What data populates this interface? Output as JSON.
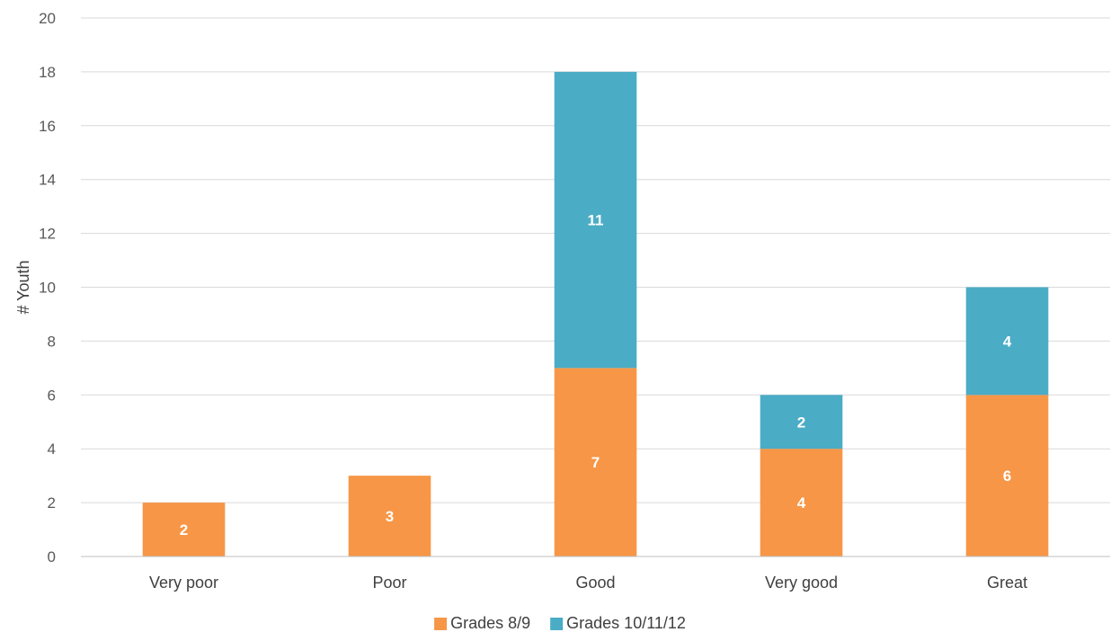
{
  "chart_data": {
    "type": "bar",
    "stacked": true,
    "title": "",
    "xlabel": "",
    "ylabel": "# Youth",
    "ylim": [
      0,
      20
    ],
    "y_ticks": [
      0,
      2,
      4,
      6,
      8,
      10,
      12,
      14,
      16,
      18,
      20
    ],
    "grid": true,
    "legend_position": "bottom",
    "categories": [
      "Very poor",
      "Poor",
      "Good",
      "Very good",
      "Great"
    ],
    "series": [
      {
        "name": "Grades 8/9",
        "color": "#f79646",
        "values": [
          2,
          3,
          7,
          4,
          6
        ]
      },
      {
        "name": "Grades 10/11/12",
        "color": "#4bacc6",
        "values": [
          0,
          0,
          11,
          2,
          4
        ]
      }
    ]
  }
}
